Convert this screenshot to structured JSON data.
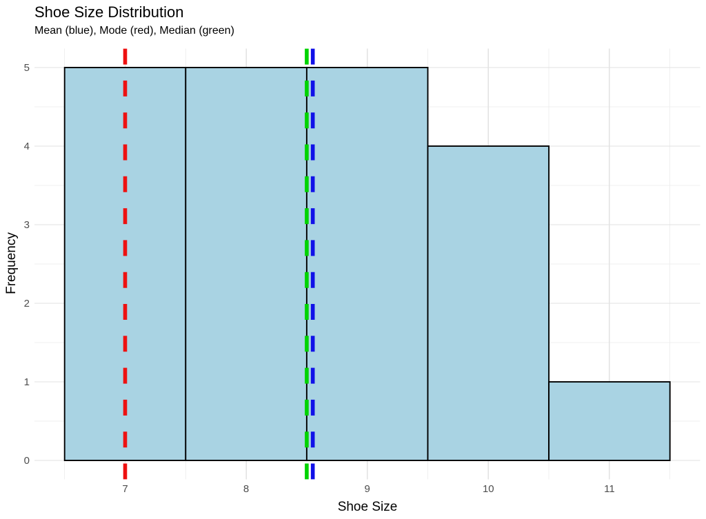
{
  "chart_data": {
    "type": "bar",
    "subtype": "histogram",
    "title": "Shoe Size Distribution",
    "subtitle": "Mean (blue), Mode (red), Median (green)",
    "xlabel": "Shoe Size",
    "ylabel": "Frequency",
    "bin_edges": [
      6.5,
      7.5,
      8.5,
      9.5,
      10.5,
      11.5
    ],
    "counts": [
      5,
      5,
      5,
      4,
      1
    ],
    "x_ticks": [
      7,
      8,
      9,
      10,
      11
    ],
    "x_tick_labels": [
      "7",
      "8",
      "9",
      "10",
      "11"
    ],
    "y_ticks": [
      0,
      1,
      2,
      3,
      4,
      5
    ],
    "y_tick_labels": [
      "0",
      "1",
      "2",
      "3",
      "4",
      "5"
    ],
    "minor_x": [
      6.5,
      7.5,
      8.5,
      9.5,
      10.5,
      11.5
    ],
    "minor_y": [
      0.5,
      1.5,
      2.5,
      3.5,
      4.5
    ],
    "xlim": [
      6.25,
      11.75
    ],
    "ylim": [
      -0.24,
      5.24
    ],
    "grid": {
      "major": true,
      "minor": true,
      "background": "white",
      "legend": "none"
    },
    "bar_fill": "#a9d3e3",
    "bar_stroke": "#000000",
    "stat_lines": [
      {
        "name": "mode",
        "value": 7.0,
        "color": "#ee1111",
        "label": "Mode (red)"
      },
      {
        "name": "median",
        "value": 8.5,
        "color": "#00d300",
        "label": "Median (green)"
      },
      {
        "name": "mean",
        "value": 8.55,
        "color": "#1111e8",
        "label": "Mean (blue)"
      }
    ],
    "colors": {
      "grid_major": "#e2e2e2",
      "grid_minor": "#efefef",
      "axis_text": "#4d4d4d",
      "title_text": "#000000"
    }
  }
}
